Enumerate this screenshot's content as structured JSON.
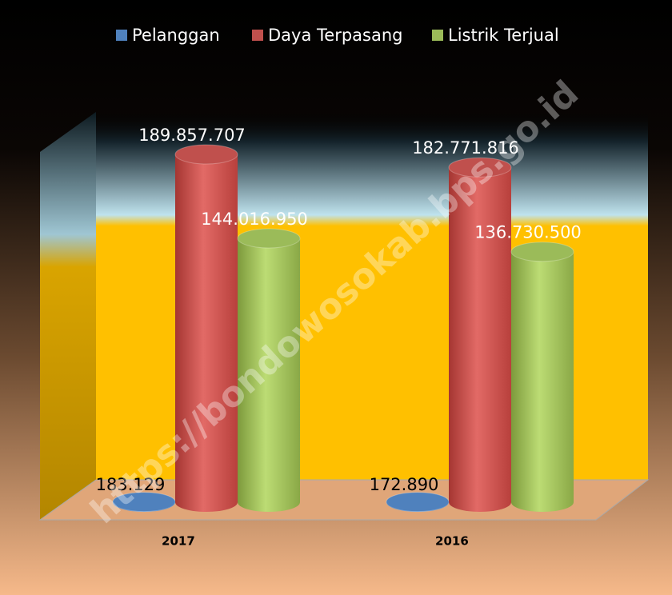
{
  "chart_data": {
    "type": "cylinder-bar",
    "categories": [
      "2017",
      "2016"
    ],
    "series": [
      {
        "name": "Pelanggan",
        "color": "#4f81bd",
        "values": [
          183129,
          172890
        ],
        "value_labels": [
          "183.129",
          "172.890"
        ]
      },
      {
        "name": "Daya Terpasang",
        "color": "#c0504d",
        "values": [
          189857707,
          182771816
        ],
        "value_labels": [
          "189.857.707",
          "182.771.816"
        ]
      },
      {
        "name": "Listrik Terjual",
        "color": "#9bbb59",
        "values": [
          144016950,
          136730500
        ],
        "value_labels": [
          "144.016.950",
          "136.730.500"
        ]
      }
    ],
    "legend": "top",
    "watermark": "https://bondowosokab.bps.go.id"
  }
}
